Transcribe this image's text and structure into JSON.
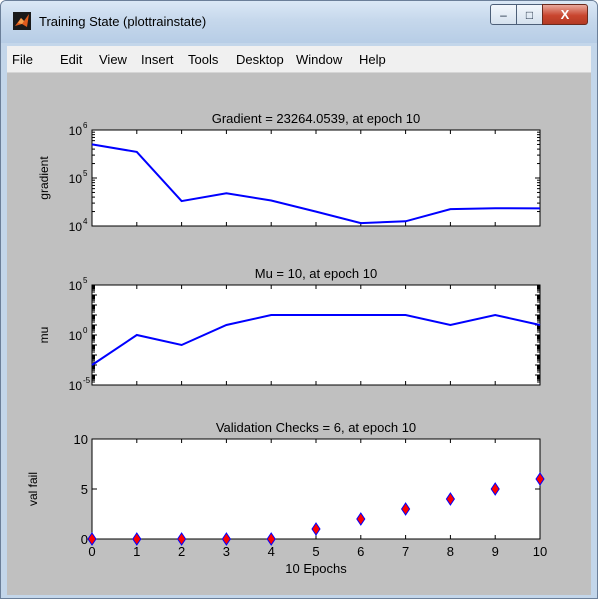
{
  "window": {
    "title": "Training State (plottrainstate)",
    "minimize_glyph": "–",
    "maximize_glyph": "□",
    "close_glyph": "X"
  },
  "menu": {
    "items": [
      "File",
      "Edit",
      "View",
      "Insert",
      "Tools",
      "Desktop",
      "Window",
      "Help"
    ],
    "dock_glyph": "↘"
  },
  "chart_data": [
    {
      "type": "line",
      "title": "Gradient = 23264.0539, at epoch 10",
      "ylabel": "gradient",
      "yscale": "log",
      "ylim": [
        10000,
        1000000
      ],
      "yticks": [
        {
          "value": 10000,
          "base": "10",
          "exp": "4"
        },
        {
          "value": 100000,
          "base": "10",
          "exp": "5"
        },
        {
          "value": 1000000,
          "base": "10",
          "exp": "6"
        }
      ],
      "xlim": [
        0,
        10
      ],
      "x": [
        0,
        1,
        2,
        3,
        4,
        5,
        6,
        7,
        8,
        9,
        10
      ],
      "values": [
        500000,
        350000,
        33000,
        48000,
        34000,
        20000,
        11500,
        12500,
        22500,
        23500,
        23264.0539
      ],
      "color": "#0000ff"
    },
    {
      "type": "line",
      "title": "Mu = 10, at epoch 10",
      "ylabel": "mu",
      "yscale": "log",
      "ylim": [
        1e-05,
        100000
      ],
      "yticks": [
        {
          "value": 1e-05,
          "base": "10",
          "exp": "-5"
        },
        {
          "value": 1,
          "base": "10",
          "exp": "0"
        },
        {
          "value": 100000,
          "base": "10",
          "exp": "5"
        }
      ],
      "xlim": [
        0,
        10
      ],
      "x": [
        0,
        1,
        2,
        3,
        4,
        5,
        6,
        7,
        8,
        9,
        10
      ],
      "values": [
        0.001,
        1,
        0.1,
        10,
        100,
        100,
        100,
        100,
        10,
        100,
        10
      ],
      "color": "#0000ff"
    },
    {
      "type": "scatter",
      "title": "Validation Checks = 6, at epoch 10",
      "ylabel": "val fail",
      "xlabel": "10 Epochs",
      "ylim": [
        0,
        10
      ],
      "yticks": [
        0,
        5,
        10
      ],
      "xlim": [
        0,
        10
      ],
      "xticks": [
        0,
        1,
        2,
        3,
        4,
        5,
        6,
        7,
        8,
        9,
        10
      ],
      "x": [
        0,
        1,
        2,
        3,
        4,
        5,
        6,
        7,
        8,
        9,
        10
      ],
      "values": [
        0,
        0,
        0,
        0,
        0,
        1,
        2,
        3,
        4,
        5,
        6
      ],
      "marker_fill": "#ff0000",
      "marker_edge": "#0000ff"
    }
  ]
}
